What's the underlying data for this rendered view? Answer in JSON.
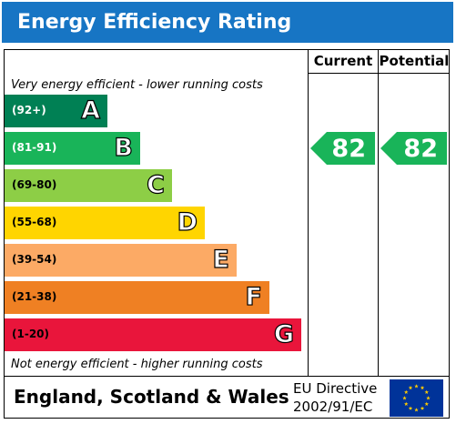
{
  "chart_data": {
    "type": "bar",
    "title": "Energy Efficiency Rating",
    "columns": [
      "Current",
      "Potential"
    ],
    "top_caption": "Very energy efficient - lower running costs",
    "bottom_caption": "Not energy efficient - higher running costs",
    "bands": [
      {
        "range": "(92+)",
        "letter": "A",
        "color": "#008054",
        "range_color": "#ffffff"
      },
      {
        "range": "(81-91)",
        "letter": "B",
        "color": "#19b459",
        "range_color": "#ffffff"
      },
      {
        "range": "(69-80)",
        "letter": "C",
        "color": "#8dce46",
        "range_color": "#000000"
      },
      {
        "range": "(55-68)",
        "letter": "D",
        "color": "#ffd500",
        "range_color": "#000000"
      },
      {
        "range": "(39-54)",
        "letter": "E",
        "color": "#fcaa65",
        "range_color": "#000000"
      },
      {
        "range": "(21-38)",
        "letter": "F",
        "color": "#ef8023",
        "range_color": "#000000"
      },
      {
        "range": "(1-20)",
        "letter": "G",
        "color": "#e9153b",
        "range_color": "#000000"
      }
    ],
    "current": {
      "value": 82,
      "band": "B",
      "color": "#19b459"
    },
    "potential": {
      "value": 82,
      "band": "B",
      "color": "#19b459"
    }
  },
  "footer": {
    "country": "England, Scotland & Wales",
    "directive_line1": "EU Directive",
    "directive_line2": "2002/91/EC"
  },
  "colors": {
    "title_bar": "#1775c4",
    "eu_flag": "#003399",
    "eu_stars": "#ffcc00"
  }
}
